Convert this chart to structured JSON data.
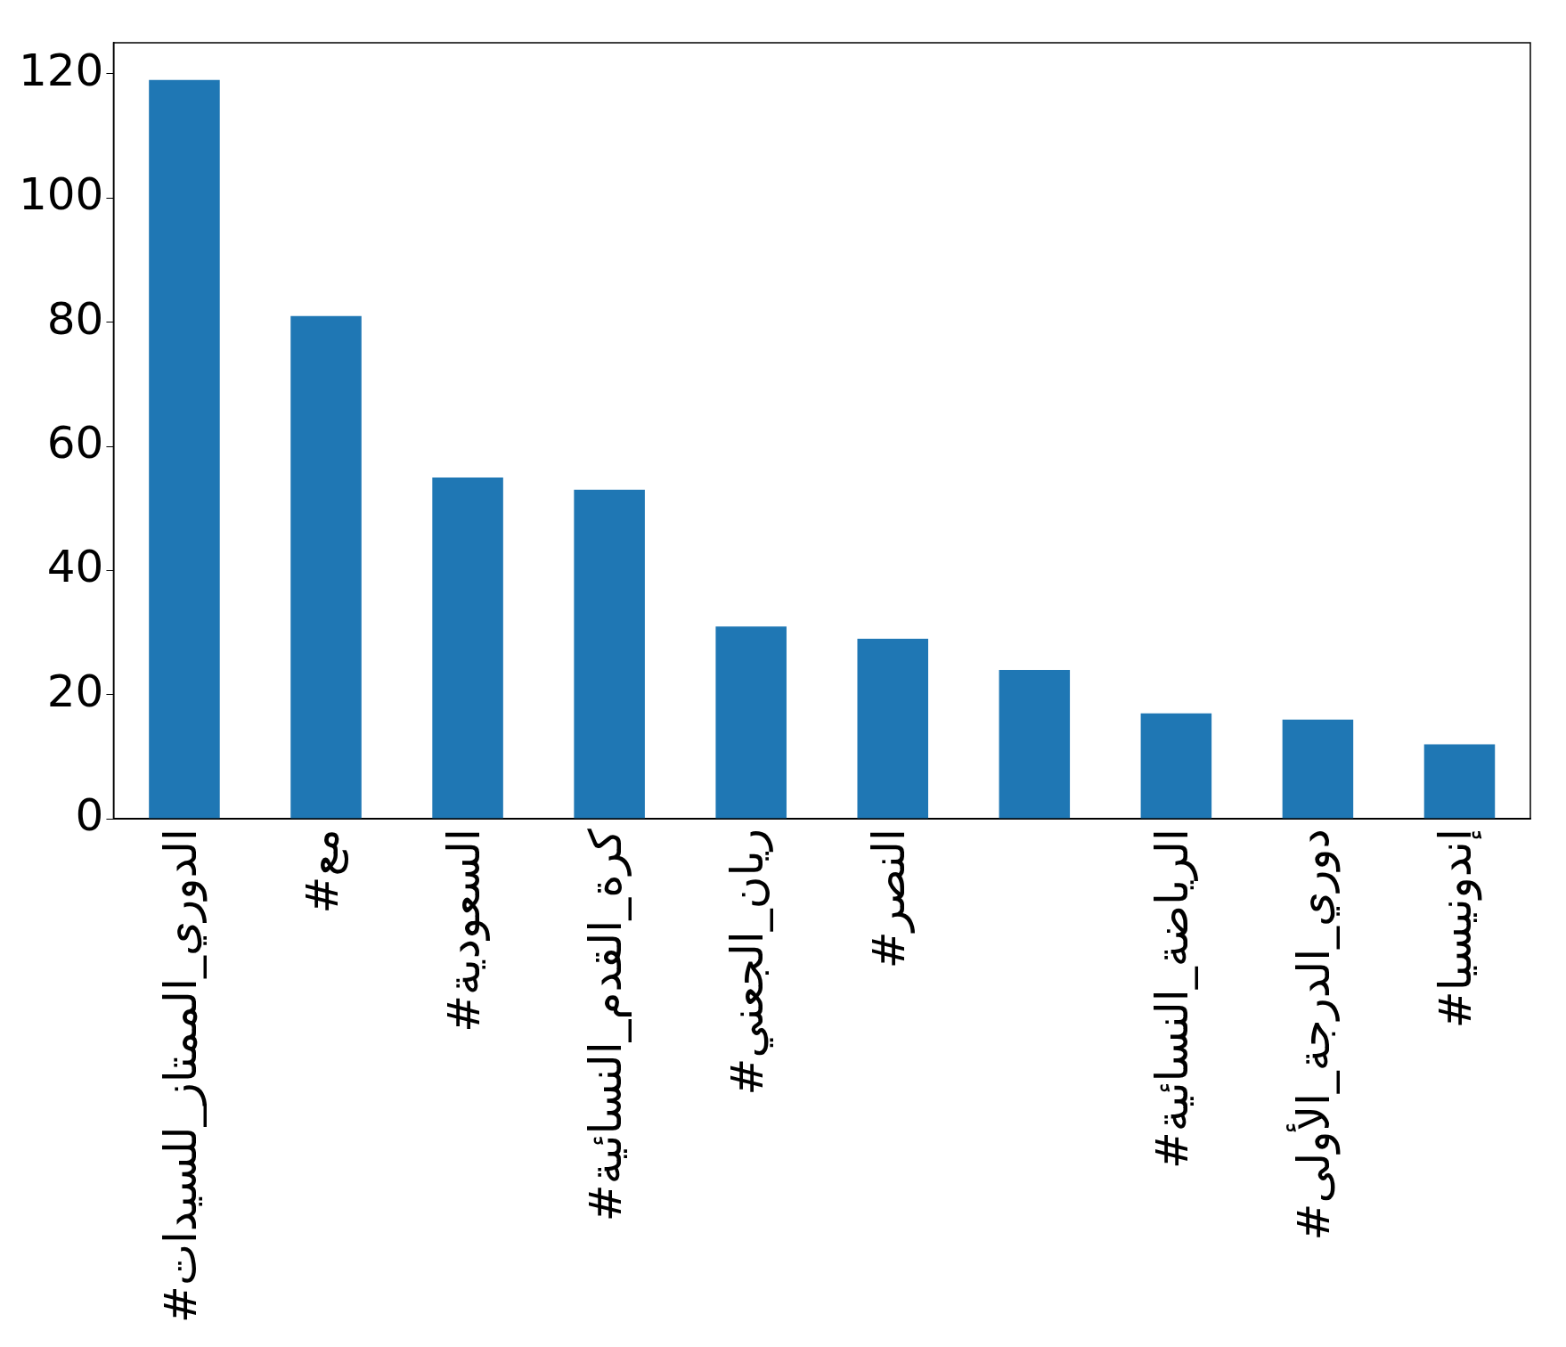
{
  "chart_data": {
    "type": "bar",
    "categories": [
      "#الدوري_الممتاز_للسيدات",
      "#مع",
      "#السعودية",
      "#كرة_القدم_النسائية",
      "#ريان_الجعني",
      "#النصر",
      null,
      "#الرياضة_النسائية",
      "#دوري_الدرجة_الأولى",
      "#إندونيسيا"
    ],
    "values": [
      119,
      81,
      55,
      53,
      31,
      29,
      24,
      17,
      16,
      12
    ],
    "color": "#1f77b4",
    "ylim": [
      0,
      125
    ],
    "yticks": [
      0,
      20,
      40,
      60,
      80,
      100,
      120
    ],
    "grid": false,
    "legend": false
  }
}
